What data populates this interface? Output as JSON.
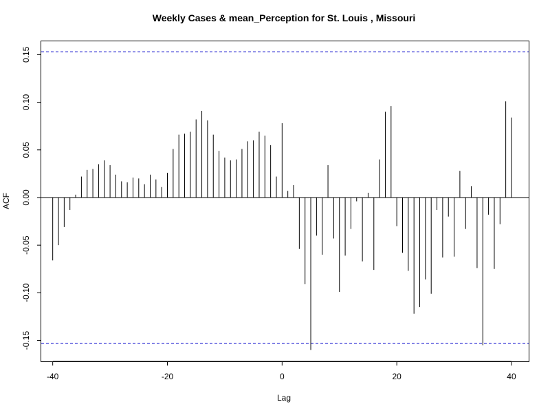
{
  "chart_data": {
    "type": "bar",
    "title": "Weekly Cases & mean_Perception for St. Louis , Missouri",
    "xlabel": "Lag",
    "ylabel": "ACF",
    "xlim": [
      -42,
      43
    ],
    "ylim": [
      -0.172,
      0.164
    ],
    "xticks": [
      -40,
      -20,
      0,
      20,
      40
    ],
    "yticks": [
      -0.15,
      -0.1,
      -0.05,
      0.0,
      0.05,
      0.1,
      0.15
    ],
    "ytick_labels": [
      "-0.15",
      "-0.10",
      "-0.05",
      "0.00",
      "0.05",
      "0.10",
      "0.15"
    ],
    "xtick_labels": [
      "-40",
      "-20",
      "0",
      "20",
      "40"
    ],
    "confidence_bound": 0.153,
    "colors": {
      "bars": "#000000",
      "bounds": "#0000cc",
      "zero": "#000000"
    },
    "grid": false,
    "lags": [
      -40,
      -39,
      -38,
      -37,
      -36,
      -35,
      -34,
      -33,
      -32,
      -31,
      -30,
      -29,
      -28,
      -27,
      -26,
      -25,
      -24,
      -23,
      -22,
      -21,
      -20,
      -19,
      -18,
      -17,
      -16,
      -15,
      -14,
      -13,
      -12,
      -11,
      -10,
      -9,
      -8,
      -7,
      -6,
      -5,
      -4,
      -3,
      -2,
      -1,
      0,
      1,
      2,
      3,
      4,
      5,
      6,
      7,
      8,
      9,
      10,
      11,
      12,
      13,
      14,
      15,
      16,
      17,
      18,
      19,
      20,
      21,
      22,
      23,
      24,
      25,
      26,
      27,
      28,
      29,
      30,
      31,
      32,
      33,
      34,
      35,
      36,
      37,
      38,
      39,
      40
    ],
    "values": [
      -0.066,
      -0.05,
      -0.031,
      -0.013,
      0.003,
      0.022,
      0.029,
      0.03,
      0.035,
      0.039,
      0.034,
      0.024,
      0.017,
      0.016,
      0.021,
      0.02,
      0.014,
      0.024,
      0.019,
      0.011,
      0.026,
      0.051,
      0.066,
      0.067,
      0.069,
      0.082,
      0.091,
      0.081,
      0.066,
      0.049,
      0.042,
      0.039,
      0.04,
      0.051,
      0.059,
      0.06,
      0.069,
      0.065,
      0.055,
      0.022,
      0.078,
      0.007,
      0.013,
      -0.054,
      -0.091,
      -0.16,
      -0.04,
      -0.06,
      0.034,
      -0.043,
      -0.099,
      -0.061,
      -0.033,
      -0.004,
      -0.067,
      0.005,
      -0.076,
      0.04,
      0.09,
      0.096,
      -0.03,
      -0.058,
      -0.077,
      -0.122,
      -0.115,
      -0.086,
      -0.101,
      -0.013,
      -0.063,
      -0.02,
      -0.062,
      0.028,
      -0.033,
      0.012,
      -0.074,
      -0.155,
      -0.018,
      -0.075,
      -0.028,
      0.101,
      0.084
    ]
  }
}
